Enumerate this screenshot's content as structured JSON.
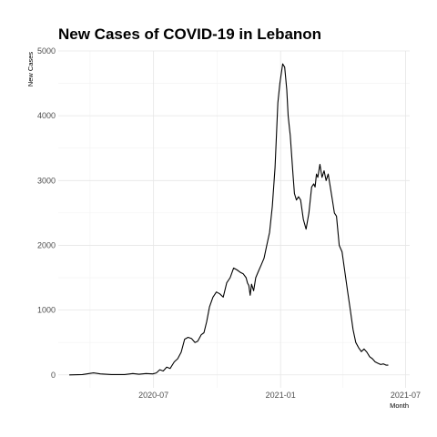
{
  "chart_data": {
    "type": "line",
    "title": "New Cases of COVID-19 in Lebanon",
    "xlabel": "Month",
    "ylabel": "New Cases",
    "xlim": [
      "2020-02-14",
      "2021-07-07"
    ],
    "ylim": [
      -200,
      5000
    ],
    "x_ticks": [
      "2020-07",
      "2021-01",
      "2021-07"
    ],
    "x_tick_dates": [
      "2020-07-01",
      "2021-01-01",
      "2021-07-01"
    ],
    "y_ticks": [
      0,
      1000,
      2000,
      3000,
      4000,
      5000
    ],
    "grid": true,
    "series": [
      {
        "color": "#000000",
        "x": [
          "2020-03-01",
          "2020-03-20",
          "2020-04-05",
          "2020-04-15",
          "2020-05-01",
          "2020-05-20",
          "2020-06-01",
          "2020-06-10",
          "2020-06-20",
          "2020-06-30",
          "2020-07-05",
          "2020-07-10",
          "2020-07-15",
          "2020-07-20",
          "2020-07-25",
          "2020-07-31",
          "2020-08-05",
          "2020-08-10",
          "2020-08-15",
          "2020-08-20",
          "2020-08-25",
          "2020-08-30",
          "2020-09-03",
          "2020-09-08",
          "2020-09-12",
          "2020-09-16",
          "2020-09-20",
          "2020-09-25",
          "2020-09-30",
          "2020-10-05",
          "2020-10-10",
          "2020-10-15",
          "2020-10-20",
          "2020-10-25",
          "2020-10-30",
          "2020-11-04",
          "2020-11-08",
          "2020-11-12",
          "2020-11-14",
          "2020-11-16",
          "2020-11-18",
          "2020-11-20",
          "2020-11-23",
          "2020-11-26",
          "2020-11-30",
          "2020-12-04",
          "2020-12-08",
          "2020-12-12",
          "2020-12-16",
          "2020-12-20",
          "2020-12-24",
          "2020-12-28",
          "2020-12-31",
          "2021-01-04",
          "2021-01-07",
          "2021-01-10",
          "2021-01-12",
          "2021-01-14",
          "2021-01-15",
          "2021-01-17",
          "2021-01-19",
          "2021-01-21",
          "2021-01-24",
          "2021-01-27",
          "2021-01-30",
          "2021-02-03",
          "2021-02-07",
          "2021-02-11",
          "2021-02-15",
          "2021-02-18",
          "2021-02-20",
          "2021-02-22",
          "2021-02-24",
          "2021-02-27",
          "2021-03-02",
          "2021-03-05",
          "2021-03-08",
          "2021-03-11",
          "2021-03-14",
          "2021-03-17",
          "2021-03-20",
          "2021-03-23",
          "2021-03-27",
          "2021-03-31",
          "2021-04-04",
          "2021-04-08",
          "2021-04-12",
          "2021-04-16",
          "2021-04-20",
          "2021-04-24",
          "2021-04-28",
          "2021-05-02",
          "2021-05-06",
          "2021-05-10",
          "2021-05-14",
          "2021-05-18",
          "2021-05-22",
          "2021-05-26",
          "2021-05-30",
          "2021-06-03",
          "2021-06-06"
        ],
        "values": [
          0,
          5,
          30,
          15,
          5,
          5,
          20,
          10,
          20,
          15,
          30,
          80,
          60,
          120,
          100,
          200,
          250,
          350,
          550,
          580,
          560,
          500,
          520,
          620,
          650,
          820,
          1050,
          1200,
          1280,
          1250,
          1200,
          1420,
          1500,
          1650,
          1620,
          1580,
          1560,
          1500,
          1420,
          1380,
          1230,
          1400,
          1300,
          1500,
          1600,
          1700,
          1800,
          2000,
          2200,
          2600,
          3200,
          4200,
          4500,
          4800,
          4750,
          4400,
          4000,
          3800,
          3700,
          3400,
          3100,
          2800,
          2700,
          2750,
          2700,
          2400,
          2250,
          2500,
          2900,
          2950,
          2900,
          3100,
          3050,
          3250,
          3050,
          3150,
          3000,
          3100,
          2900,
          2700,
          2500,
          2450,
          2000,
          1900,
          1600,
          1300,
          1000,
          700,
          500,
          420,
          360,
          400,
          350,
          280,
          250,
          200,
          180,
          160,
          170,
          150,
          150
        ]
      }
    ]
  }
}
